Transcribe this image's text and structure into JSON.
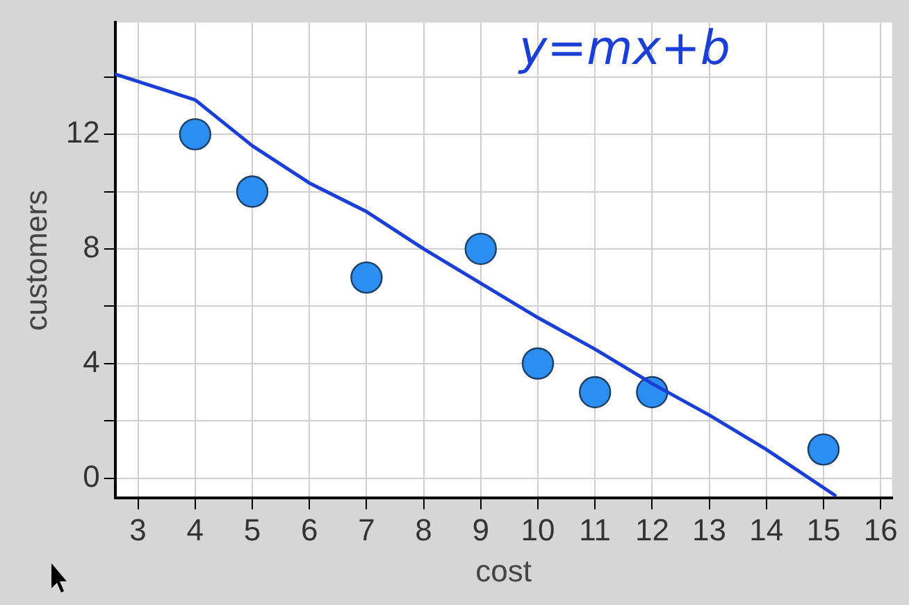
{
  "chart_data": {
    "type": "scatter",
    "xlabel": "cost",
    "ylabel": "customers",
    "annotations": [
      "y=mx+b"
    ],
    "xlim": [
      2.6,
      16.2
    ],
    "xticks": [
      3,
      4,
      5,
      6,
      7,
      8,
      9,
      10,
      11,
      12,
      13,
      14,
      15,
      16
    ],
    "ylim": [
      -0.7,
      15.9
    ],
    "yticks": [
      0,
      {
        "value": 2,
        "label": null
      },
      4,
      {
        "value": 6,
        "label": null
      },
      8,
      {
        "value": 10,
        "label": null
      },
      12,
      {
        "value": 14,
        "label": null
      }
    ],
    "grid": true,
    "legend": false,
    "marker": "circle",
    "series": [
      {
        "type": "scatter",
        "color": "#2b8ef0",
        "x": [
          4,
          5,
          7,
          9,
          10,
          11,
          12,
          15
        ],
        "values": [
          12,
          10,
          7,
          8,
          4,
          3,
          3,
          1
        ]
      },
      {
        "type": "line",
        "color": "#1a3fd6",
        "marker": "none",
        "x": [
          2.6,
          4,
          5,
          6,
          7,
          8,
          9,
          10,
          11,
          12,
          13,
          14,
          15.2
        ],
        "values": [
          14.1,
          13.2,
          11.6,
          10.3,
          9.3,
          8.0,
          6.8,
          5.6,
          4.5,
          3.3,
          2.2,
          1.0,
          -0.6
        ]
      }
    ]
  }
}
